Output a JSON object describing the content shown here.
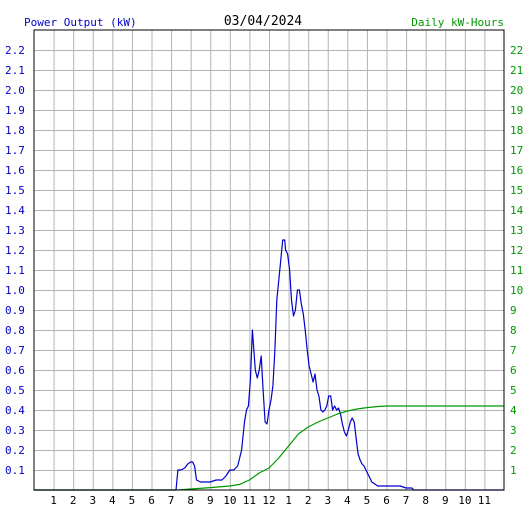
{
  "chart_data": {
    "type": "line",
    "title": "03/04/2024",
    "left_axis_label": "Power Output (kW)",
    "right_axis_label": "Daily kW-Hours",
    "x_ticks": [
      "1",
      "2",
      "3",
      "4",
      "5",
      "6",
      "7",
      "8",
      "9",
      "10",
      "11",
      "12",
      "1",
      "2",
      "3",
      "4",
      "5",
      "6",
      "7",
      "8",
      "9",
      "10",
      "11"
    ],
    "x_range_hours": [
      0,
      24
    ],
    "left_ylim": [
      0,
      2.3
    ],
    "left_ticks": [
      "0.1",
      "0.2",
      "0.3",
      "0.4",
      "0.5",
      "0.6",
      "0.7",
      "0.8",
      "0.9",
      "1.0",
      "1.1",
      "1.2",
      "1.3",
      "1.4",
      "1.5",
      "1.6",
      "1.7",
      "1.8",
      "1.9",
      "2.0",
      "2.1",
      "2.2"
    ],
    "right_ylim": [
      0,
      23
    ],
    "right_ticks": [
      "1",
      "2",
      "3",
      "4",
      "5",
      "6",
      "7",
      "8",
      "9",
      "10",
      "11",
      "12",
      "13",
      "14",
      "15",
      "16",
      "17",
      "18",
      "19",
      "20",
      "21",
      "22"
    ],
    "grid": true,
    "colors": {
      "power": "#0000cc",
      "energy": "#009900",
      "grid": "#b4b4b4",
      "axis": "#000000"
    },
    "series": [
      {
        "name": "Power Output (kW)",
        "axis": "left",
        "x": [
          0,
          7.25,
          7.35,
          7.5,
          7.7,
          7.85,
          8.0,
          8.1,
          8.2,
          8.3,
          8.5,
          8.7,
          9.0,
          9.3,
          9.6,
          9.8,
          10.0,
          10.2,
          10.4,
          10.6,
          10.75,
          10.85,
          10.95,
          11.05,
          11.15,
          11.3,
          11.4,
          11.5,
          11.6,
          11.7,
          11.8,
          11.9,
          12.0,
          12.1,
          12.2,
          12.3,
          12.4,
          12.55,
          12.7,
          12.8,
          12.85,
          12.95,
          13.05,
          13.15,
          13.25,
          13.35,
          13.45,
          13.55,
          13.65,
          13.75,
          13.85,
          13.95,
          14.05,
          14.15,
          14.25,
          14.35,
          14.45,
          14.55,
          14.65,
          14.75,
          14.85,
          14.95,
          15.05,
          15.15,
          15.25,
          15.35,
          15.45,
          15.55,
          15.65,
          15.75,
          15.85,
          15.95,
          16.05,
          16.15,
          16.25,
          16.35,
          16.45,
          16.55,
          16.65,
          16.75,
          16.85,
          16.95,
          17.05,
          17.15,
          17.25,
          17.4,
          17.55,
          17.7,
          17.85,
          18.0,
          18.1,
          18.2,
          18.3,
          18.5,
          18.7,
          19.0,
          19.3,
          19.4,
          24
        ],
        "values": [
          0,
          0,
          0.1,
          0.1,
          0.11,
          0.13,
          0.14,
          0.14,
          0.12,
          0.05,
          0.04,
          0.04,
          0.04,
          0.05,
          0.05,
          0.07,
          0.1,
          0.1,
          0.12,
          0.2,
          0.34,
          0.4,
          0.42,
          0.55,
          0.8,
          0.6,
          0.56,
          0.6,
          0.67,
          0.5,
          0.34,
          0.33,
          0.4,
          0.45,
          0.52,
          0.7,
          0.95,
          1.1,
          1.25,
          1.25,
          1.2,
          1.18,
          1.1,
          0.95,
          0.87,
          0.9,
          1.0,
          1.0,
          0.93,
          0.88,
          0.8,
          0.7,
          0.62,
          0.58,
          0.54,
          0.58,
          0.5,
          0.47,
          0.4,
          0.39,
          0.4,
          0.42,
          0.47,
          0.47,
          0.4,
          0.42,
          0.4,
          0.41,
          0.38,
          0.33,
          0.29,
          0.27,
          0.3,
          0.34,
          0.36,
          0.34,
          0.26,
          0.18,
          0.15,
          0.13,
          0.12,
          0.1,
          0.08,
          0.06,
          0.04,
          0.03,
          0.02,
          0.02,
          0.02,
          0.02,
          0.02,
          0.02,
          0.02,
          0.02,
          0.02,
          0.01,
          0.01,
          0,
          0
        ]
      },
      {
        "name": "Daily kW-Hours",
        "axis": "right",
        "x": [
          0,
          7.3,
          8.0,
          9.0,
          10.0,
          10.5,
          11.0,
          11.5,
          12.0,
          12.5,
          13.0,
          13.5,
          14.0,
          14.5,
          15.0,
          15.5,
          16.0,
          16.5,
          17.0,
          17.5,
          18.0,
          18.5,
          19.0,
          19.5,
          24
        ],
        "values": [
          0,
          0,
          0.05,
          0.12,
          0.2,
          0.28,
          0.5,
          0.85,
          1.1,
          1.6,
          2.2,
          2.8,
          3.15,
          3.4,
          3.6,
          3.8,
          3.95,
          4.05,
          4.12,
          4.17,
          4.2,
          4.2,
          4.2,
          4.2,
          4.2
        ]
      }
    ]
  }
}
